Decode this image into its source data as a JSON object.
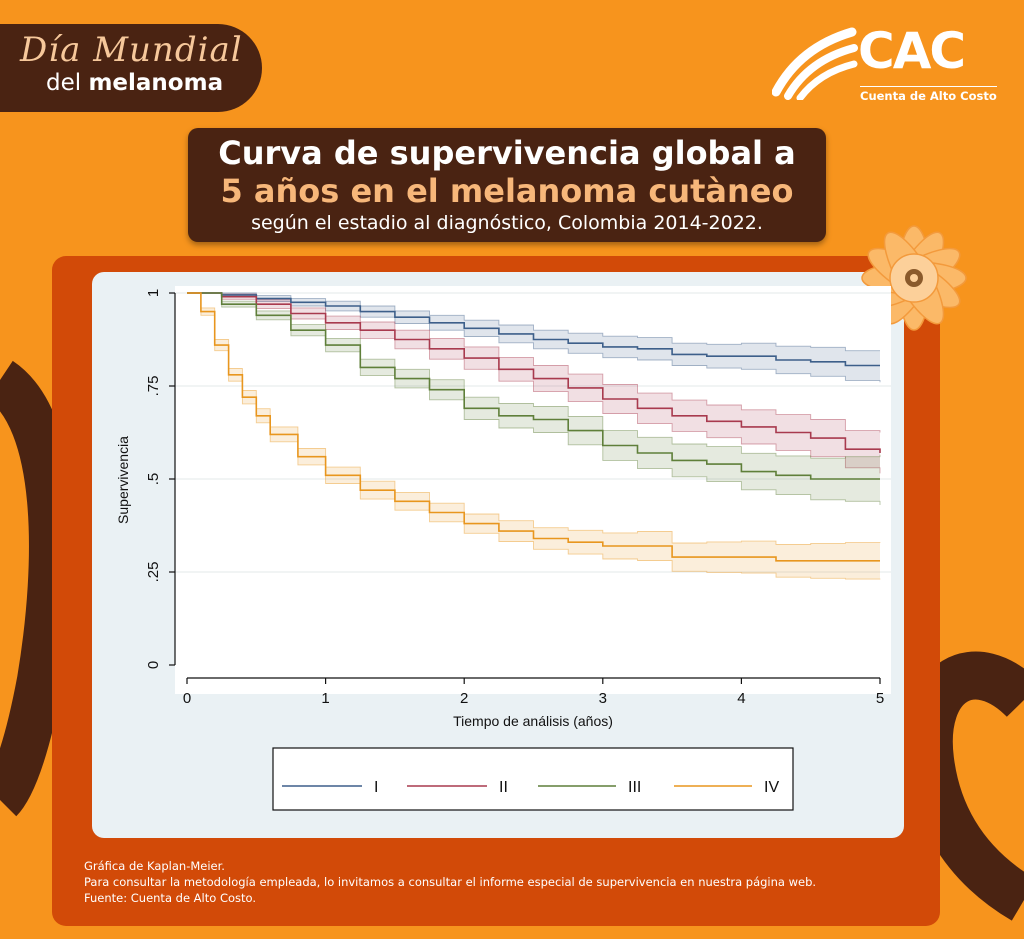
{
  "header": {
    "badge_line1": "Día Mundial",
    "badge_line2_prefix": "del ",
    "badge_line2_bold": "melanoma",
    "logo_text": "CAC",
    "logo_subtitle": "Cuenta de Alto Costo"
  },
  "title": {
    "line1": "Curva de supervivencia global a",
    "line2": "5 años en el melanoma cutàneo",
    "line3": "según el estadio al diagnóstico, Colombia 2014-2022."
  },
  "colors": {
    "background": "#f7941d",
    "dark_brown": "#4a2312",
    "frame": "#d24a08",
    "panel": "#eaf1f4"
  },
  "chart_data": {
    "type": "line",
    "xlabel": "Tiempo de análisis (años)",
    "ylabel": "Supervivencia",
    "xlim": [
      0,
      5
    ],
    "ylim": [
      0,
      1
    ],
    "x_ticks": [
      0,
      1,
      2,
      3,
      4,
      5
    ],
    "x_tick_labels": [
      "0",
      "1",
      "2",
      "3",
      "4",
      "5"
    ],
    "y_ticks": [
      0,
      0.25,
      0.5,
      0.75,
      1
    ],
    "y_tick_labels": [
      "0",
      ".25",
      ".5",
      ".75",
      "1"
    ],
    "grid": "horizontal",
    "legend_position": "bottom",
    "series": [
      {
        "name": "I",
        "color": "#3d5f8a",
        "x": [
          0,
          0.25,
          0.5,
          0.75,
          1,
          1.25,
          1.5,
          1.75,
          2,
          2.25,
          2.5,
          2.75,
          3,
          3.25,
          3.5,
          3.75,
          4,
          4.25,
          4.5,
          4.75,
          5
        ],
        "y": [
          1,
          0.995,
          0.985,
          0.975,
          0.965,
          0.95,
          0.935,
          0.92,
          0.905,
          0.89,
          0.875,
          0.865,
          0.855,
          0.85,
          0.835,
          0.83,
          0.83,
          0.82,
          0.815,
          0.805,
          0.805
        ],
        "lower": [
          1,
          0.99,
          0.977,
          0.965,
          0.952,
          0.935,
          0.918,
          0.9,
          0.883,
          0.866,
          0.85,
          0.838,
          0.826,
          0.82,
          0.805,
          0.798,
          0.795,
          0.783,
          0.776,
          0.765,
          0.76
        ],
        "upper": [
          1,
          1,
          0.993,
          0.985,
          0.978,
          0.965,
          0.952,
          0.94,
          0.927,
          0.914,
          0.9,
          0.892,
          0.884,
          0.88,
          0.865,
          0.862,
          0.865,
          0.857,
          0.854,
          0.845,
          0.845
        ]
      },
      {
        "name": "II",
        "color": "#a83a4e",
        "x": [
          0,
          0.25,
          0.5,
          0.75,
          1,
          1.25,
          1.5,
          1.75,
          2,
          2.25,
          2.5,
          2.75,
          3,
          3.25,
          3.5,
          3.75,
          4,
          4.25,
          4.5,
          4.75,
          5
        ],
        "y": [
          1,
          0.99,
          0.97,
          0.945,
          0.92,
          0.9,
          0.875,
          0.85,
          0.825,
          0.795,
          0.77,
          0.745,
          0.715,
          0.69,
          0.67,
          0.655,
          0.64,
          0.625,
          0.61,
          0.58,
          0.57
        ],
        "lower": [
          1,
          0.983,
          0.958,
          0.93,
          0.902,
          0.878,
          0.85,
          0.822,
          0.795,
          0.763,
          0.735,
          0.708,
          0.676,
          0.649,
          0.628,
          0.611,
          0.594,
          0.577,
          0.56,
          0.53,
          0.515
        ],
        "upper": [
          1,
          0.997,
          0.982,
          0.96,
          0.938,
          0.922,
          0.9,
          0.878,
          0.855,
          0.827,
          0.805,
          0.782,
          0.754,
          0.731,
          0.712,
          0.699,
          0.686,
          0.673,
          0.66,
          0.63,
          0.625
        ]
      },
      {
        "name": "III",
        "color": "#5f7f3a",
        "x": [
          0,
          0.25,
          0.5,
          0.75,
          1,
          1.25,
          1.5,
          1.75,
          2,
          2.25,
          2.5,
          2.75,
          3,
          3.25,
          3.5,
          3.75,
          4,
          4.25,
          4.5,
          4.75,
          5
        ],
        "y": [
          1,
          0.97,
          0.94,
          0.9,
          0.86,
          0.8,
          0.77,
          0.74,
          0.69,
          0.67,
          0.66,
          0.63,
          0.59,
          0.57,
          0.55,
          0.54,
          0.52,
          0.51,
          0.5,
          0.5,
          0.5
        ],
        "lower": [
          1,
          0.962,
          0.928,
          0.885,
          0.842,
          0.778,
          0.745,
          0.713,
          0.66,
          0.637,
          0.625,
          0.592,
          0.55,
          0.528,
          0.506,
          0.493,
          0.471,
          0.458,
          0.444,
          0.44,
          0.43
        ],
        "upper": [
          1,
          0.978,
          0.952,
          0.915,
          0.878,
          0.822,
          0.795,
          0.767,
          0.72,
          0.703,
          0.695,
          0.668,
          0.63,
          0.612,
          0.594,
          0.587,
          0.569,
          0.562,
          0.556,
          0.56,
          0.565
        ]
      },
      {
        "name": "IV",
        "color": "#e8961e",
        "x": [
          0,
          0.1,
          0.2,
          0.3,
          0.4,
          0.5,
          0.6,
          0.8,
          1,
          1.25,
          1.5,
          1.75,
          2,
          2.25,
          2.5,
          2.75,
          3,
          3.25,
          3.5,
          3.75,
          4,
          4.25,
          4.5,
          4.75,
          5
        ],
        "y": [
          1,
          0.95,
          0.86,
          0.78,
          0.72,
          0.67,
          0.62,
          0.56,
          0.51,
          0.47,
          0.44,
          0.41,
          0.38,
          0.36,
          0.34,
          0.33,
          0.32,
          0.32,
          0.29,
          0.29,
          0.29,
          0.28,
          0.28,
          0.28,
          0.28
        ],
        "lower": [
          1,
          0.94,
          0.845,
          0.763,
          0.702,
          0.651,
          0.6,
          0.538,
          0.488,
          0.446,
          0.416,
          0.385,
          0.354,
          0.332,
          0.311,
          0.298,
          0.285,
          0.281,
          0.252,
          0.249,
          0.247,
          0.236,
          0.233,
          0.231,
          0.23
        ],
        "upper": [
          1,
          0.96,
          0.875,
          0.797,
          0.738,
          0.689,
          0.64,
          0.582,
          0.532,
          0.494,
          0.464,
          0.435,
          0.406,
          0.388,
          0.369,
          0.362,
          0.355,
          0.359,
          0.328,
          0.331,
          0.333,
          0.324,
          0.327,
          0.329,
          0.33
        ]
      }
    ]
  },
  "notes": {
    "line1": "Gráfica de Kaplan-Meier.",
    "line2": "Para consultar la metodología empleada, lo invitamos a consultar el informe especial de supervivencia en nuestra página web.",
    "line3": "Fuente: Cuenta de Alto Costo."
  }
}
